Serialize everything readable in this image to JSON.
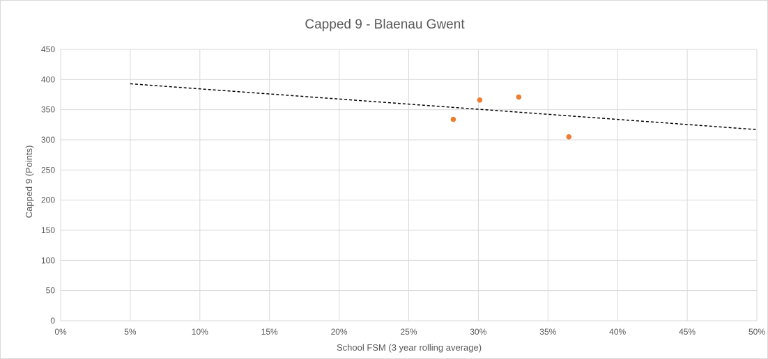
{
  "chart_data": {
    "type": "scatter",
    "title": "Capped 9 - Blaenau Gwent",
    "xlabel": "School FSM (3 year rolling average)",
    "ylabel": "Capped 9 (Points)",
    "xlim": [
      0,
      0.5
    ],
    "ylim": [
      0,
      450
    ],
    "x_ticks": [
      0,
      0.05,
      0.1,
      0.15,
      0.2,
      0.25,
      0.3,
      0.35,
      0.4,
      0.45,
      0.5
    ],
    "x_tick_labels": [
      "0%",
      "5%",
      "10%",
      "15%",
      "20%",
      "25%",
      "30%",
      "35%",
      "40%",
      "45%",
      "50%"
    ],
    "y_ticks": [
      0,
      50,
      100,
      150,
      200,
      250,
      300,
      350,
      400,
      450
    ],
    "y_tick_labels": [
      "0",
      "50",
      "100",
      "150",
      "200",
      "250",
      "300",
      "350",
      "400",
      "450"
    ],
    "grid": true,
    "points": [
      {
        "x": 0.282,
        "y": 334
      },
      {
        "x": 0.301,
        "y": 366
      },
      {
        "x": 0.329,
        "y": 371
      },
      {
        "x": 0.365,
        "y": 305
      }
    ],
    "trendline": {
      "x": [
        0.05,
        0.5
      ],
      "y": [
        393,
        317
      ],
      "style": "dashed"
    },
    "colors": {
      "points": "#ed7d31",
      "trendline": "#000000",
      "grid": "#d9d9d9",
      "text": "#595959"
    }
  }
}
